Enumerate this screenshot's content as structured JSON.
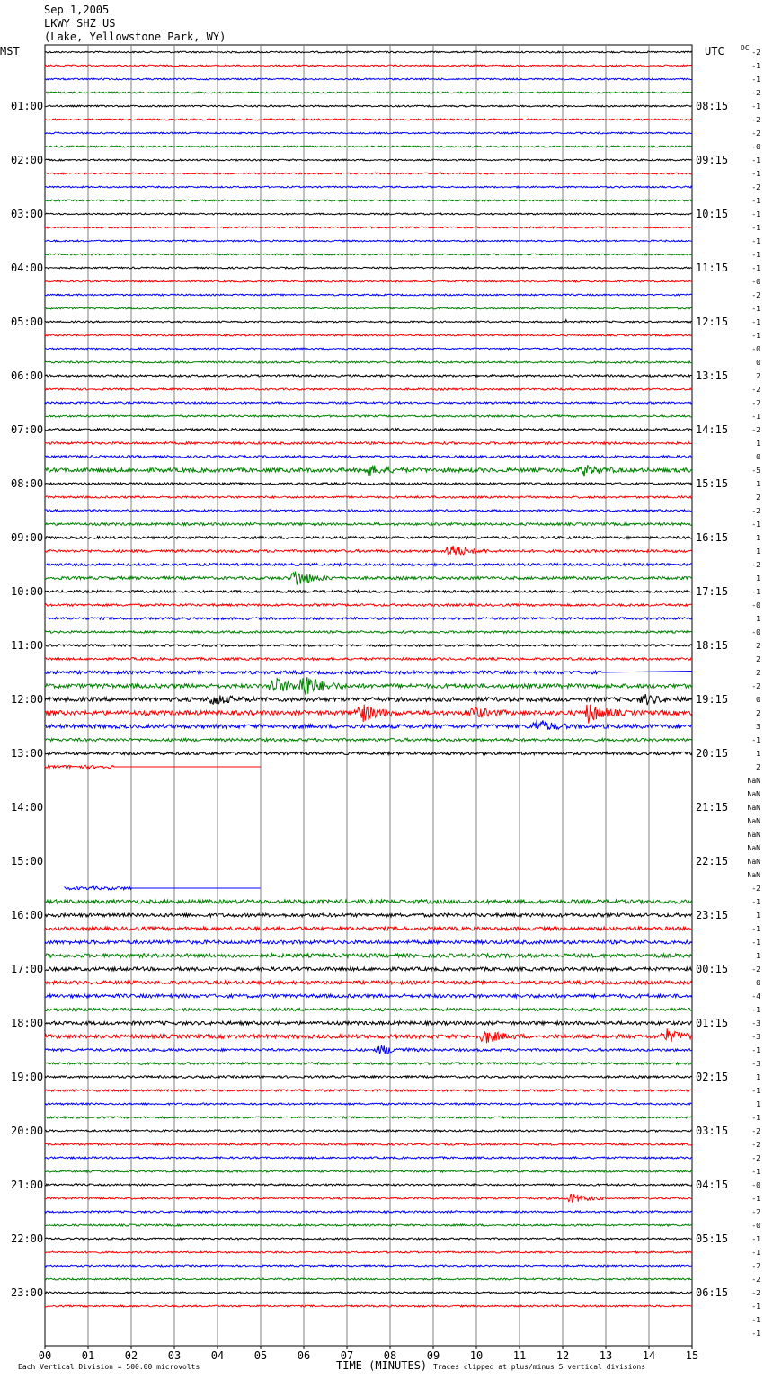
{
  "header": {
    "date": "Sep 1,2005",
    "station": "LKWY SHZ US",
    "location": "(Lake, Yellowstone Park, WY)"
  },
  "left_zone_label": "MST",
  "right_zone_label": "UTC",
  "dc_label": "DC",
  "footer": {
    "scale": "Each Vertical Division =  500.00 microvolts",
    "xlabel": "TIME (MINUTES)",
    "clip_note": "Traces clipped at plus/minus 5 vertical divisions"
  },
  "colors": {
    "trace_cycle": [
      "#000000",
      "#ff0000",
      "#0000ff",
      "#008000"
    ],
    "grid": "#808080",
    "background": "#ffffff"
  },
  "chart_data": {
    "type": "line",
    "title": "LKWY SHZ US",
    "xlabel": "TIME (MINUTES)",
    "x_ticks": [
      "00",
      "01",
      "02",
      "03",
      "04",
      "05",
      "06",
      "07",
      "08",
      "09",
      "10",
      "11",
      "12",
      "13",
      "14",
      "15"
    ],
    "xlim": [
      0,
      15
    ],
    "rows_per_hour": 4,
    "left_hour_labels": [
      "01:00",
      "02:00",
      "03:00",
      "04:00",
      "05:00",
      "06:00",
      "07:00",
      "08:00",
      "09:00",
      "10:00",
      "11:00",
      "12:00",
      "13:00",
      "14:00",
      "15:00",
      "16:00",
      "17:00",
      "18:00",
      "19:00",
      "20:00",
      "21:00",
      "22:00",
      "23:00"
    ],
    "right_hour_labels": [
      "08:15",
      "09:15",
      "10:15",
      "11:15",
      "12:15",
      "13:15",
      "14:15",
      "15:15",
      "16:15",
      "17:15",
      "18:15",
      "19:15",
      "20:15",
      "21:15",
      "22:15",
      "23:15",
      "00:15",
      "01:15",
      "02:15",
      "03:15",
      "04:15",
      "05:15",
      "06:15"
    ],
    "dc_offsets": [
      "-2",
      "-1",
      "-1",
      "-2",
      "-1",
      "-2",
      "-2",
      "-0",
      "-1",
      "-1",
      "-2",
      "-1",
      "-1",
      "-1",
      "-1",
      "-1",
      "-1",
      "-0",
      "-2",
      "-1",
      "-1",
      "-1",
      "-0",
      "0",
      "2",
      "-2",
      "-2",
      "-1",
      "-2",
      "1",
      "0",
      "-5",
      "1",
      "2",
      "-2",
      "-1",
      "1",
      "1",
      "-2",
      "1",
      "-1",
      "-0",
      "1",
      "-0",
      "2",
      "2",
      "2",
      "-2",
      "0",
      "2",
      "3",
      "-1",
      "1",
      "2",
      "NaN",
      "NaN",
      "NaN",
      "NaN",
      "NaN",
      "NaN",
      "NaN",
      "NaN",
      "-2",
      "-1",
      "1",
      "-1",
      "-1",
      "1",
      "-2",
      "0",
      "-4",
      "-1",
      "-3",
      "-3",
      "-1",
      "-3",
      "1",
      "-1",
      "1",
      "-1",
      "-2",
      "-2",
      "-2",
      "-1",
      "-0",
      "-1",
      "-2",
      "-0",
      "-1",
      "-1",
      "-2",
      "-2",
      "-2",
      "-1",
      "-1",
      "-1"
    ],
    "row_activity": [
      1,
      1,
      1,
      1,
      1,
      1,
      1,
      1,
      1,
      1,
      1,
      1,
      1,
      1,
      1,
      1,
      1,
      1,
      1,
      1,
      1,
      1,
      1,
      1.2,
      1.3,
      1.2,
      1.2,
      1.2,
      1.5,
      1.5,
      1.5,
      2.5,
      1.3,
      1.3,
      1.3,
      1.6,
      1.6,
      1.6,
      1.6,
      1.8,
      1.6,
      1.5,
      1.5,
      1.4,
      1.4,
      1.5,
      2,
      2.6,
      2.6,
      2.8,
      2.5,
      1.8,
      1.8,
      2,
      0,
      0,
      0,
      0,
      0,
      0,
      0,
      0,
      2,
      2.4,
      2.2,
      2.2,
      2.2,
      2.4,
      2.2,
      2.2,
      2.2,
      1.8,
      2.2,
      2.4,
      1.6,
      1.4,
      1.4,
      1.3,
      1.2,
      1.2,
      1.2,
      1.2,
      1.2,
      1.2,
      1.2,
      1.2,
      1.2,
      1.2,
      1.1,
      1.1,
      1.1,
      1.1,
      1.1,
      1.1
    ],
    "events": [
      {
        "row": 31,
        "minute": 7.5,
        "amp": 5
      },
      {
        "row": 31,
        "minute": 12.5,
        "amp": 5
      },
      {
        "row": 37,
        "minute": 9.4,
        "amp": 8
      },
      {
        "row": 39,
        "minute": 5.8,
        "amp": 10
      },
      {
        "row": 47,
        "minute": 5.3,
        "amp": 9
      },
      {
        "row": 47,
        "minute": 6.0,
        "amp": 14
      },
      {
        "row": 48,
        "minute": 3.9,
        "amp": 6
      },
      {
        "row": 48,
        "minute": 13.9,
        "amp": 5
      },
      {
        "row": 49,
        "minute": 7.3,
        "amp": 11
      },
      {
        "row": 49,
        "minute": 12.6,
        "amp": 10
      },
      {
        "row": 49,
        "minute": 9.9,
        "amp": 6
      },
      {
        "row": 50,
        "minute": 11.4,
        "amp": 7
      },
      {
        "row": 73,
        "minute": 10.2,
        "amp": 7
      },
      {
        "row": 73,
        "minute": 14.4,
        "amp": 7
      },
      {
        "row": 74,
        "minute": 7.8,
        "amp": 5
      },
      {
        "row": 85,
        "minute": 12.2,
        "amp": 5
      }
    ],
    "partial_segments": [
      {
        "row": 53,
        "from_minute": 0,
        "to_minute": 5,
        "active_until_minute": 1.6
      },
      {
        "row": 62,
        "from_minute": 0.45,
        "to_minute": 5,
        "active_until_minute": 2.0
      }
    ],
    "flatline_segments": [
      {
        "row": 46,
        "from_minute": 12.9,
        "to_minute": 15
      }
    ],
    "spikes": [
      {
        "row": 20,
        "minute": 12.1,
        "amp": 5
      }
    ],
    "grid": true
  }
}
